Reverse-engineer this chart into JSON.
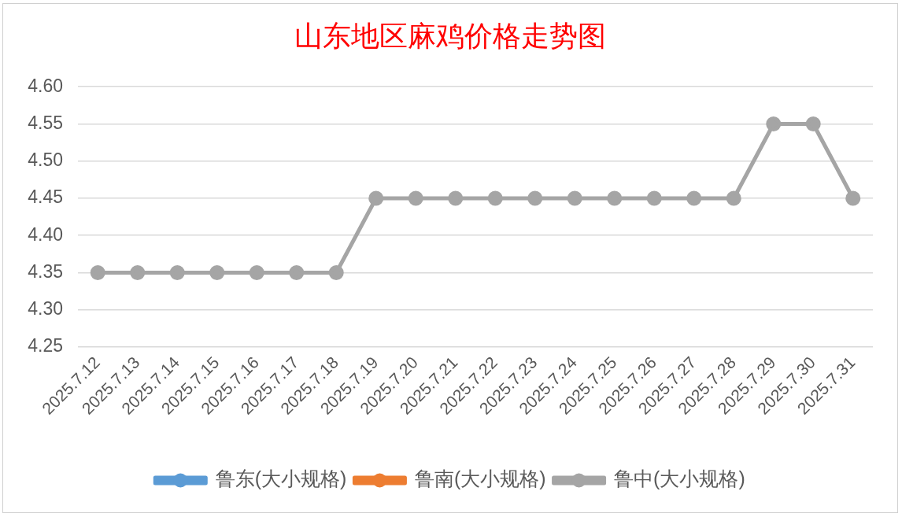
{
  "chart_data": {
    "type": "line",
    "title": "山东地区麻鸡价格走势图",
    "categories": [
      "2025.7.12",
      "2025.7.13",
      "2025.7.14",
      "2025.7.15",
      "2025.7.16",
      "2025.7.17",
      "2025.7.18",
      "2025.7.19",
      "2025.7.20",
      "2025.7.21",
      "2025.7.22",
      "2025.7.23",
      "2025.7.24",
      "2025.7.25",
      "2025.7.26",
      "2025.7.27",
      "2025.7.28",
      "2025.7.29",
      "2025.7.30",
      "2025.7.31"
    ],
    "series": [
      {
        "name": "鲁东(大小规格)",
        "color": "#5b9bd5",
        "values": [
          null,
          null,
          null,
          null,
          null,
          null,
          null,
          null,
          null,
          null,
          null,
          null,
          null,
          null,
          null,
          null,
          null,
          null,
          null,
          null
        ]
      },
      {
        "name": "鲁南(大小规格)",
        "color": "#ed7d31",
        "values": [
          null,
          null,
          null,
          null,
          null,
          null,
          null,
          null,
          null,
          null,
          null,
          null,
          null,
          null,
          null,
          null,
          null,
          null,
          null,
          null
        ]
      },
      {
        "name": "鲁中(大小规格)",
        "color": "#a5a5a5",
        "values": [
          4.35,
          4.35,
          4.35,
          4.35,
          4.35,
          4.35,
          4.35,
          4.45,
          4.45,
          4.45,
          4.45,
          4.45,
          4.45,
          4.45,
          4.45,
          4.45,
          4.45,
          4.55,
          4.55,
          4.45
        ]
      }
    ],
    "ylim": [
      4.25,
      4.6
    ],
    "yticks": [
      4.25,
      {
        "value": 4.3,
        "label": "4.30"
      },
      4.35,
      {
        "value": 4.4,
        "label": "4.40"
      },
      4.45,
      {
        "value": 4.5,
        "label": "4.50"
      },
      4.55,
      {
        "value": 4.6,
        "label": "4.60"
      }
    ],
    "grid": "y",
    "legend": "bottom",
    "marker": "circle",
    "line_style": "solid"
  }
}
